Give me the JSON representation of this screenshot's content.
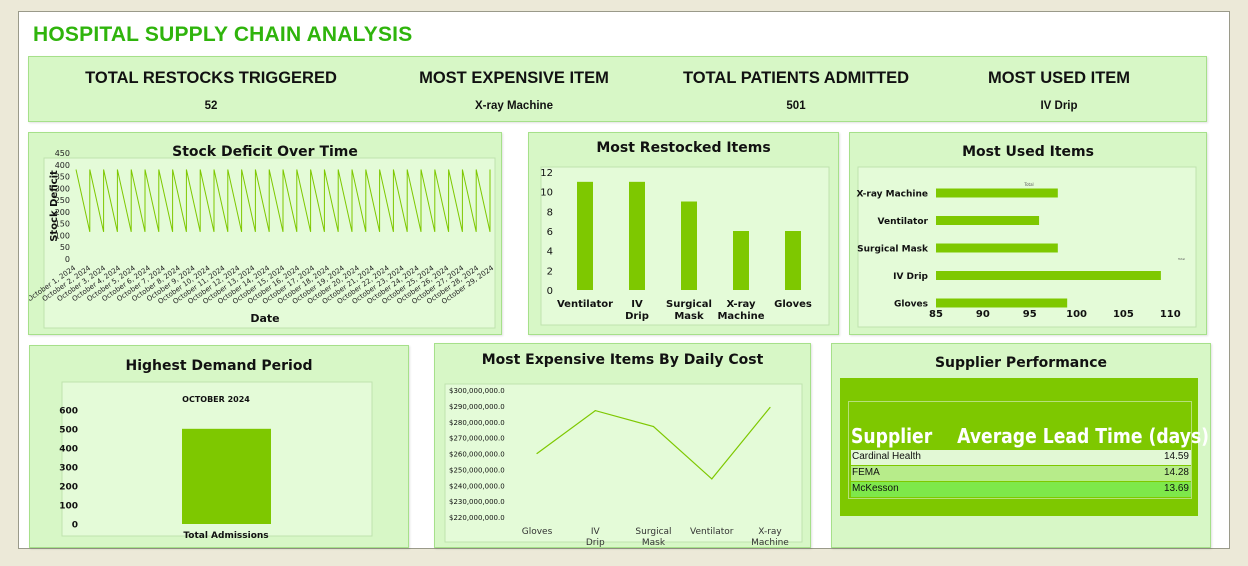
{
  "title": "HOSPITAL SUPPLY CHAIN ANALYSIS",
  "kpis": [
    {
      "label": "TOTAL RESTOCKS TRIGGERED",
      "value": "52"
    },
    {
      "label": "MOST EXPENSIVE ITEM",
      "value": "X-ray Machine"
    },
    {
      "label": "TOTAL PATIENTS ADMITTED",
      "value": "501"
    },
    {
      "label": "MOST USED ITEM",
      "value": "IV Drip"
    }
  ],
  "colors": {
    "accent": "#2fb40c",
    "bar": "#7ec800",
    "line": "#7ec800",
    "panel": "#d7f7c6",
    "plot": "#e4fbd8"
  },
  "chart_data": [
    {
      "id": "stock_deficit",
      "type": "line",
      "title": "Stock Deficit Over Time",
      "xlabel": "Date",
      "ylabel": "Stock Deficit",
      "ylim": [
        0,
        450
      ],
      "yticks": [
        0,
        50,
        100,
        150,
        200,
        250,
        300,
        350,
        400,
        450
      ],
      "x": [
        "October 1, 2024",
        "October 2, 2024",
        "October 3, 2024",
        "October 4, 2024",
        "October 5, 2024",
        "October 6, 2024",
        "October 7, 2024",
        "October 8, 2024",
        "October 9, 2024",
        "October 10, 2024",
        "October 11, 2024",
        "October 12, 2024",
        "October 13, 2024",
        "October 14, 2024",
        "October 15, 2024",
        "October 16, 2024",
        "October 17, 2024",
        "October 18, 2024",
        "October 19, 2024",
        "October 20, 2024",
        "October 21, 2024",
        "October 22, 2024",
        "October 23, 2024",
        "October 24, 2024",
        "October 25, 2024",
        "October 26, 2024",
        "October 27, 2024",
        "October 28, 2024",
        "October 29, 2024"
      ],
      "cycle": [
        380,
        115
      ]
    },
    {
      "id": "most_restocked",
      "type": "bar",
      "title": "Most Restocked Items",
      "categories": [
        "Ventilator",
        "IV Drip",
        "Surgical Mask",
        "X-ray Machine",
        "Gloves"
      ],
      "values": [
        11,
        11,
        9,
        6,
        6
      ],
      "ylim": [
        0,
        12
      ],
      "yticks": [
        0,
        2,
        4,
        6,
        8,
        10,
        12
      ]
    },
    {
      "id": "most_used",
      "type": "bar",
      "orientation": "horizontal",
      "title": "Most Used Items",
      "subtitle": "Total",
      "categories": [
        "X-ray Machine",
        "Ventilator",
        "Surgical Mask",
        "IV Drip",
        "Gloves"
      ],
      "values": [
        98,
        96,
        98,
        109,
        99
      ],
      "xlim": [
        85,
        112
      ],
      "xticks": [
        85,
        90,
        95,
        100,
        105,
        110
      ],
      "legend": "Total"
    },
    {
      "id": "highest_demand",
      "type": "bar",
      "title": "Highest Demand Period",
      "subtitle": "OCTOBER 2024",
      "categories": [
        "Total Admissions"
      ],
      "values": [
        501
      ],
      "ylim": [
        0,
        600
      ],
      "yticks": [
        0,
        100,
        200,
        300,
        400,
        500,
        600
      ]
    },
    {
      "id": "expensive_daily_cost",
      "type": "line",
      "title": "Most Expensive Items By Daily Cost",
      "categories": [
        "Gloves",
        "IV Drip",
        "Surgical Mask",
        "Ventilator",
        "X-ray Machine"
      ],
      "values": [
        260000000,
        287000000,
        277000000,
        244000000,
        289000000
      ],
      "ylim": [
        220000000,
        300000000
      ],
      "yticks": [
        "$220,000,000.0",
        "$230,000,000.0",
        "$240,000,000.0",
        "$250,000,000.0",
        "$260,000,000.0",
        "$270,000,000.0",
        "$280,000,000.0",
        "$290,000,000.0",
        "$300,000,000.0"
      ]
    },
    {
      "id": "supplier_performance",
      "type": "table",
      "title": "Supplier Performance",
      "columns": [
        "Supplier",
        "Average Lead Time (days)"
      ],
      "rows": [
        {
          "name": "Cardinal Health",
          "value": "14.59",
          "color": "#e2f8d5"
        },
        {
          "name": "FEMA",
          "value": "14.28",
          "color": "#b7ec8a"
        },
        {
          "name": "McKesson",
          "value": "13.69",
          "color": "#7ee84a"
        }
      ]
    }
  ]
}
